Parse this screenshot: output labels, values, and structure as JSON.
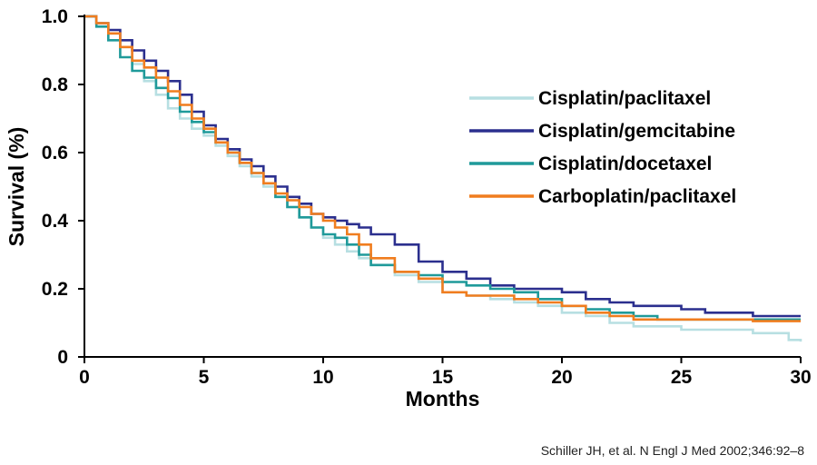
{
  "chart_data": {
    "type": "line",
    "title": "",
    "xlabel": "Months",
    "ylabel": "Survival (%)",
    "xlim": [
      0,
      30
    ],
    "ylim": [
      0,
      1.0
    ],
    "x_ticks": [
      0,
      5,
      10,
      15,
      20,
      25,
      30
    ],
    "y_ticks": [
      0,
      0.2,
      0.4,
      0.6,
      0.8,
      1.0
    ],
    "x_tick_labels": [
      "0",
      "5",
      "10",
      "15",
      "20",
      "25",
      "30"
    ],
    "y_tick_labels": [
      "0",
      "0.2",
      "0.4",
      "0.6",
      "0.8",
      "1.0"
    ],
    "grid": false,
    "legend_position": "right",
    "step": true,
    "series": [
      {
        "name": "Cisplatin/paclitaxel",
        "color": "#b7dfe2",
        "x": [
          0,
          0.5,
          1,
          1.5,
          2,
          2.5,
          3,
          3.5,
          4,
          4.5,
          5,
          5.5,
          6,
          6.5,
          7,
          7.5,
          8,
          8.5,
          9,
          9.5,
          10,
          10.5,
          11,
          11.5,
          12,
          13,
          14,
          15,
          16,
          17,
          18,
          19,
          20,
          21,
          22,
          23,
          24,
          25,
          26,
          27,
          28,
          29,
          29.5,
          30
        ],
        "y": [
          1.0,
          0.98,
          0.95,
          0.91,
          0.86,
          0.81,
          0.77,
          0.73,
          0.7,
          0.67,
          0.65,
          0.62,
          0.59,
          0.56,
          0.53,
          0.5,
          0.47,
          0.44,
          0.41,
          0.38,
          0.35,
          0.33,
          0.31,
          0.29,
          0.27,
          0.24,
          0.22,
          0.19,
          0.18,
          0.17,
          0.16,
          0.15,
          0.13,
          0.12,
          0.1,
          0.09,
          0.09,
          0.08,
          0.08,
          0.08,
          0.07,
          0.07,
          0.05,
          0.045
        ]
      },
      {
        "name": "Cisplatin/gemcitabine",
        "color": "#2b2f8e",
        "x": [
          0,
          0.5,
          1,
          1.5,
          2,
          2.5,
          3,
          3.5,
          4,
          4.5,
          5,
          5.5,
          6,
          6.5,
          7,
          7.5,
          8,
          8.5,
          9,
          9.5,
          10,
          10.5,
          11,
          11.5,
          12,
          13,
          14,
          15,
          16,
          17,
          18,
          19,
          20,
          21,
          22,
          23,
          24,
          25,
          26,
          27,
          28,
          29,
          30
        ],
        "y": [
          1.0,
          0.98,
          0.96,
          0.93,
          0.9,
          0.87,
          0.84,
          0.81,
          0.77,
          0.72,
          0.68,
          0.64,
          0.61,
          0.58,
          0.56,
          0.53,
          0.5,
          0.47,
          0.45,
          0.42,
          0.41,
          0.4,
          0.39,
          0.38,
          0.36,
          0.33,
          0.28,
          0.25,
          0.23,
          0.21,
          0.2,
          0.2,
          0.19,
          0.17,
          0.16,
          0.15,
          0.15,
          0.14,
          0.13,
          0.13,
          0.12,
          0.12,
          0.12
        ]
      },
      {
        "name": "Cisplatin/docetaxel",
        "color": "#1f9a9a",
        "x": [
          0,
          0.5,
          1,
          1.5,
          2,
          2.5,
          3,
          3.5,
          4,
          4.5,
          5,
          5.5,
          6,
          6.5,
          7,
          7.5,
          8,
          8.5,
          9,
          9.5,
          10,
          10.5,
          11,
          11.5,
          12,
          13,
          14,
          15,
          16,
          17,
          18,
          19,
          20,
          21,
          22,
          23,
          24,
          25,
          26,
          27,
          28,
          29,
          30
        ],
        "y": [
          1.0,
          0.97,
          0.93,
          0.88,
          0.84,
          0.82,
          0.79,
          0.76,
          0.72,
          0.69,
          0.66,
          0.63,
          0.6,
          0.57,
          0.54,
          0.51,
          0.47,
          0.44,
          0.41,
          0.38,
          0.36,
          0.35,
          0.33,
          0.3,
          0.27,
          0.25,
          0.24,
          0.22,
          0.21,
          0.2,
          0.19,
          0.17,
          0.15,
          0.14,
          0.13,
          0.12,
          0.11,
          0.11,
          0.11,
          0.11,
          0.11,
          0.11,
          0.11
        ]
      },
      {
        "name": "Carboplatin/paclitaxel",
        "color": "#f07d1f",
        "x": [
          0,
          0.5,
          1,
          1.5,
          2,
          2.5,
          3,
          3.5,
          4,
          4.5,
          5,
          5.5,
          6,
          6.5,
          7,
          7.5,
          8,
          8.5,
          9,
          9.5,
          10,
          10.5,
          11,
          11.5,
          12,
          13,
          14,
          15,
          16,
          17,
          18,
          19,
          20,
          21,
          22,
          23,
          24,
          25,
          26,
          27,
          28,
          29,
          30
        ],
        "y": [
          1.0,
          0.98,
          0.95,
          0.91,
          0.87,
          0.85,
          0.82,
          0.78,
          0.74,
          0.7,
          0.67,
          0.63,
          0.6,
          0.57,
          0.54,
          0.51,
          0.48,
          0.46,
          0.44,
          0.42,
          0.4,
          0.38,
          0.36,
          0.33,
          0.29,
          0.25,
          0.23,
          0.19,
          0.18,
          0.18,
          0.17,
          0.16,
          0.15,
          0.13,
          0.12,
          0.11,
          0.11,
          0.11,
          0.11,
          0.11,
          0.105,
          0.105,
          0.105
        ]
      }
    ]
  },
  "footnote": "Schiller JH, et al. N Engl J Med 2002;346:92–8"
}
